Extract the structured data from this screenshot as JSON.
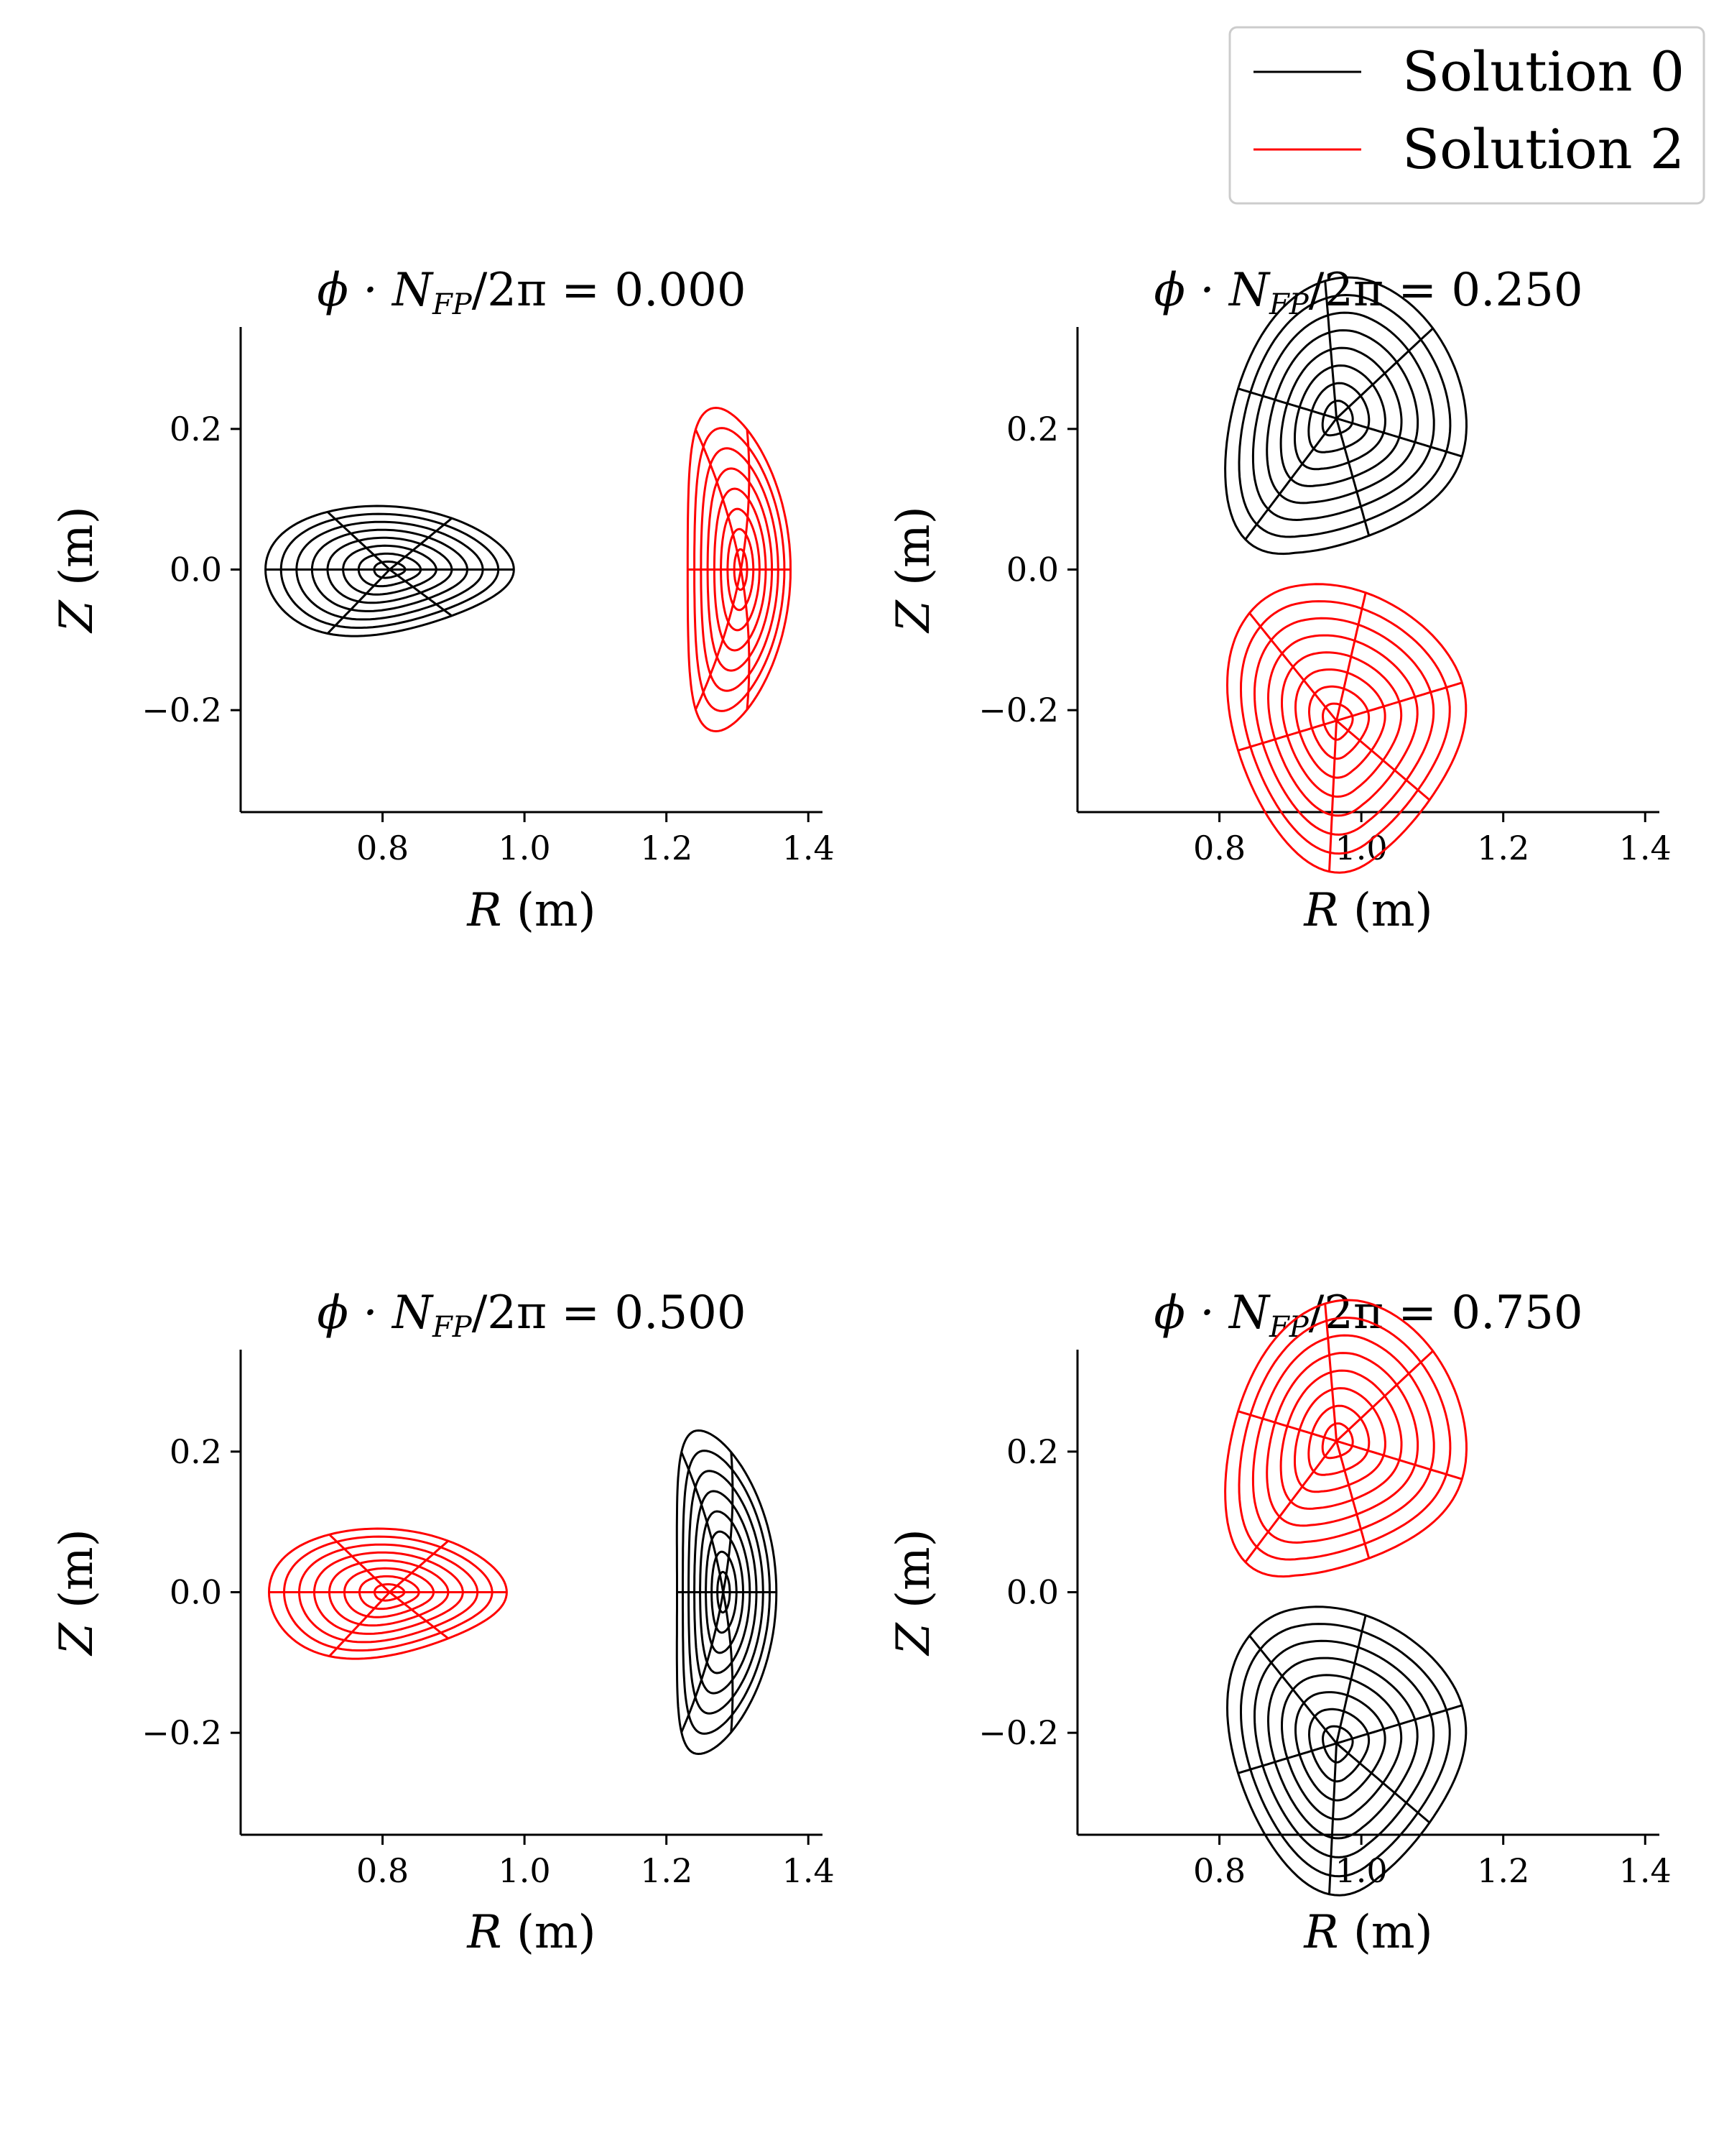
{
  "chart_data": {
    "type": "line",
    "figure_kind": "flux-surface cross-sections (stellarator), 2x2 grid of poloidal slices",
    "legend": {
      "location": "top-right",
      "entries": [
        {
          "label": "Solution 0",
          "color": "#000000"
        },
        {
          "label": "Solution 2",
          "color": "#ff0000"
        }
      ]
    },
    "axes": {
      "xlabel": "R (m)",
      "ylabel": "Z (m)",
      "xlim": [
        0.6,
        1.42
      ],
      "ylim": [
        -0.345,
        0.345
      ],
      "xticks": [
        0.8,
        1.0,
        1.2,
        1.4
      ],
      "xtick_labels": [
        "0.8",
        "1.0",
        "1.2",
        "1.4"
      ],
      "yticks": [
        0.2,
        0.0,
        -0.2
      ],
      "ytick_labels": [
        "0.2",
        "0.0",
        "−0.2"
      ],
      "grid": false
    },
    "surfaces": {
      "n_flux_surfaces": 8,
      "rho_levels": [
        0.125,
        0.25,
        0.375,
        0.5,
        0.625,
        0.75,
        0.875,
        1.0
      ],
      "n_poloidal_lines": 6
    },
    "panels": [
      {
        "title_prefix": "ϕ · N",
        "title_sub": "FP",
        "title_suffix": "/2π = 0.000",
        "phi_fraction": 0.0,
        "surfaces": [
          {
            "series": "Solution 0",
            "color": "#000000",
            "shape": "teardrop",
            "axis_R": 0.81,
            "axis_Z": 0.0,
            "R_min": 0.635,
            "R_max": 0.985,
            "Z_extent": 0.09,
            "tilt_deg": 0
          },
          {
            "series": "Solution 2",
            "color": "#ff0000",
            "shape": "bean",
            "axis_R": 1.305,
            "axis_Z": 0.0,
            "R_min": 1.23,
            "R_max": 1.375,
            "Z_extent": 0.23,
            "tilt_deg": 0
          }
        ]
      },
      {
        "title_prefix": "ϕ · N",
        "title_sub": "FP",
        "title_suffix": "/2π = 0.250",
        "phi_fraction": 0.25,
        "surfaces": [
          {
            "series": "Solution 0",
            "color": "#000000",
            "shape": "tilted-teardrop",
            "axis_R": 0.965,
            "axis_Z": 0.215,
            "R_min": 0.82,
            "R_max": 1.15,
            "Z_extent": 0.2,
            "tilt_deg": -17
          },
          {
            "series": "Solution 2",
            "color": "#ff0000",
            "shape": "tilted-teardrop",
            "axis_R": 0.965,
            "axis_Z": -0.215,
            "R_min": 0.82,
            "R_max": 1.15,
            "Z_extent": 0.2,
            "tilt_deg": 17
          }
        ]
      },
      {
        "title_prefix": "ϕ · N",
        "title_sub": "FP",
        "title_suffix": "/2π = 0.500",
        "phi_fraction": 0.5,
        "surfaces": [
          {
            "series": "Solution 2",
            "color": "#ff0000",
            "shape": "teardrop",
            "axis_R": 0.81,
            "axis_Z": 0.0,
            "R_min": 0.64,
            "R_max": 0.975,
            "Z_extent": 0.09,
            "tilt_deg": 0
          },
          {
            "series": "Solution 0",
            "color": "#000000",
            "shape": "bean",
            "axis_R": 1.28,
            "axis_Z": 0.0,
            "R_min": 1.215,
            "R_max": 1.355,
            "Z_extent": 0.23,
            "tilt_deg": 0
          }
        ]
      },
      {
        "title_prefix": "ϕ · N",
        "title_sub": "FP",
        "title_suffix": "/2π = 0.750",
        "phi_fraction": 0.75,
        "surfaces": [
          {
            "series": "Solution 2",
            "color": "#ff0000",
            "shape": "tilted-teardrop",
            "axis_R": 0.965,
            "axis_Z": 0.215,
            "R_min": 0.82,
            "R_max": 1.15,
            "Z_extent": 0.2,
            "tilt_deg": -17
          },
          {
            "series": "Solution 0",
            "color": "#000000",
            "shape": "tilted-teardrop",
            "axis_R": 0.965,
            "axis_Z": -0.215,
            "R_min": 0.82,
            "R_max": 1.15,
            "Z_extent": 0.2,
            "tilt_deg": 17
          }
        ]
      }
    ]
  }
}
